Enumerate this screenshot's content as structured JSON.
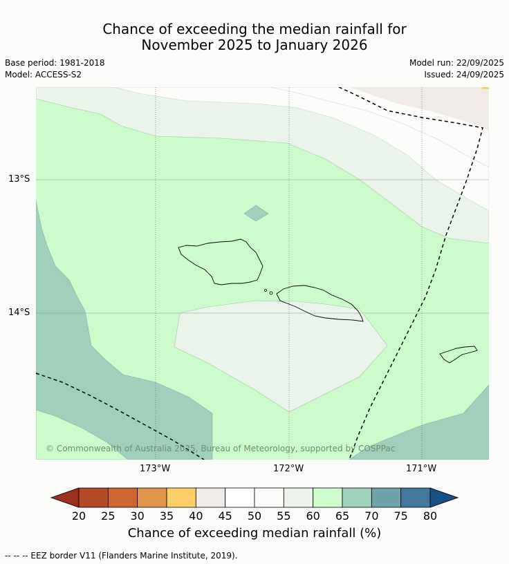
{
  "title_line1": "Chance of exceeding the median rainfall for",
  "title_line2": "November 2025 to January 2026",
  "left_meta": {
    "base_period": "Base period: 1981-2018",
    "model": "Model: ACCESS-S2"
  },
  "right_meta": {
    "model_run": "Model run: 22/09/2025",
    "issued": "Issued: 24/09/2025"
  },
  "lat_labels": [
    "13°S",
    "14°S"
  ],
  "lon_labels": [
    "173°W",
    "172°W",
    "171°W"
  ],
  "copyright": "© Commonwealth of Australia 2025, Bureau of Meteorology, supported by COSPPac",
  "colorbar": {
    "ticks": [
      "20",
      "25",
      "30",
      "35",
      "40",
      "45",
      "50",
      "55",
      "60",
      "65",
      "70",
      "75",
      "80"
    ],
    "colors": [
      "#9c3020",
      "#b44b27",
      "#cf6530",
      "#e1954a",
      "#fdcd6a",
      "#f1ebe8",
      "#ffffff",
      "#fbfcfa",
      "#eaf4ea",
      "#ccfccc",
      "#9fd0bb",
      "#6ea3a8",
      "#41789b",
      "#1a4f86"
    ],
    "label": "Chance of exceeding median rainfall (%)"
  },
  "footnote": "--  --  -- EEZ border V11 (Flanders Marine Institute, 2019)."
}
